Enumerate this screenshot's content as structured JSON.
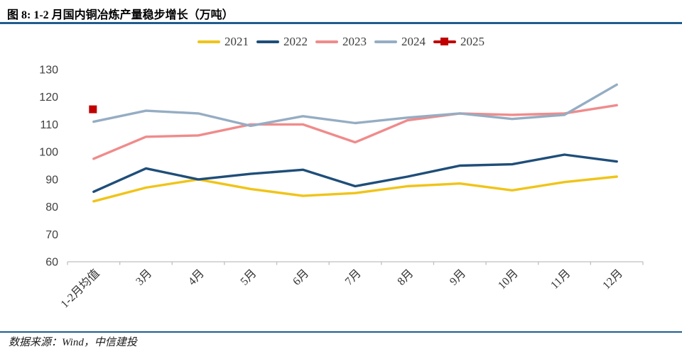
{
  "header": {
    "title": "图 8: 1-2 月国内铜冶炼产量稳步增长（万吨）"
  },
  "footer": {
    "source": "数据来源：Wind，中信建投"
  },
  "colors": {
    "rule_blue": "#1F5C8F",
    "axis_gray": "#BFBFBF"
  },
  "chart_data": {
    "type": "line",
    "title": "图 8: 1-2 月国内铜冶炼产量稳步增长（万吨）",
    "xlabel": "",
    "ylabel": "",
    "categories": [
      "1-2月均值",
      "3月",
      "4月",
      "5月",
      "6月",
      "7月",
      "8月",
      "9月",
      "10月",
      "11月",
      "12月"
    ],
    "series": [
      {
        "name": "2021",
        "color": "#F0C419",
        "marker": "none",
        "values": [
          82,
          87,
          90,
          86.5,
          84,
          85,
          87.5,
          88.5,
          86,
          89,
          91
        ]
      },
      {
        "name": "2022",
        "color": "#1F4E79",
        "marker": "none",
        "values": [
          85.5,
          94,
          90,
          92,
          93.5,
          87.5,
          91,
          95,
          95.5,
          99,
          96.5
        ]
      },
      {
        "name": "2023",
        "color": "#F08B8B",
        "marker": "none",
        "values": [
          97.5,
          105.5,
          106,
          110,
          110,
          103.5,
          111.5,
          114,
          113.5,
          114,
          117
        ]
      },
      {
        "name": "2024",
        "color": "#95ADC3",
        "marker": "none",
        "values": [
          111,
          115,
          114,
          109.5,
          113,
          110.5,
          112.5,
          114,
          112,
          113.5,
          124.5
        ]
      },
      {
        "name": "2025",
        "color": "#C00000",
        "marker": "square",
        "values": [
          115.5,
          null,
          null,
          null,
          null,
          null,
          null,
          null,
          null,
          null,
          null
        ]
      }
    ],
    "ylim": [
      60,
      130
    ],
    "y_ticks": [
      60,
      70,
      80,
      90,
      100,
      110,
      120,
      130
    ],
    "legend_position": "top",
    "grid": false
  }
}
